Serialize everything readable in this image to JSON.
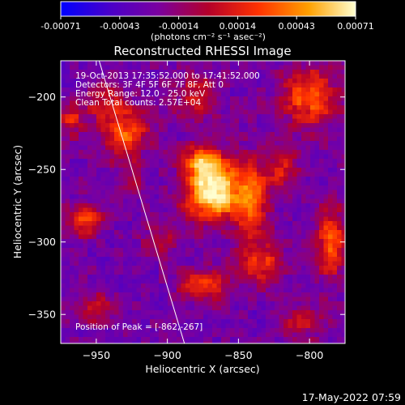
{
  "colorbar": {
    "ticks": [
      "-0.00071",
      "-0.00043",
      "-0.00014",
      "0.00014",
      "0.00043",
      "0.00071"
    ],
    "unit_label": "(photons cm⁻² s⁻¹ asec⁻²)",
    "colors": [
      "#0000ff",
      "#4b00c8",
      "#7a00a0",
      "#b4002a",
      "#ff3200",
      "#ffa000",
      "#ffffd0"
    ]
  },
  "chart_data": {
    "type": "heatmap",
    "title": "Reconstructed RHESSI Image",
    "xlabel": "Heliocentric X (arcsec)",
    "ylabel": "Heliocentric Y (arcsec)",
    "xlim": [
      -975,
      -775
    ],
    "ylim": [
      -370,
      -175
    ],
    "x_ticks": [
      -950,
      -900,
      -850,
      -800
    ],
    "y_ticks": [
      -200,
      -250,
      -300,
      -350
    ],
    "x_tick_labels": [
      "−950",
      "−900",
      "−850",
      "−800"
    ],
    "y_tick_labels": [
      "−200",
      "−250",
      "−300",
      "−350"
    ],
    "annotations": [
      "19-Oct-2013 17:35:52.000 to 17:41:52.000",
      "Detectors: 3F 4F 5F 6F 7F 8F, Att 0",
      "Energy Range: 12.0 - 25.0 keV",
      "Clean    Total counts: 2.57E+04"
    ],
    "peak_label": "Position of Peak = [-862,-267]",
    "peak": [
      -862,
      -267
    ],
    "limb_line": [
      [
        -948,
        -175
      ],
      [
        -888,
        -370
      ]
    ],
    "sources": [
      {
        "x": -867,
        "y": -265,
        "amp": 1.0,
        "sx": 14,
        "sy": 14
      },
      {
        "x": -875,
        "y": -245,
        "amp": 0.55,
        "sx": 10,
        "sy": 8
      },
      {
        "x": -840,
        "y": -270,
        "amp": 0.5,
        "sx": 8,
        "sy": 20
      },
      {
        "x": -835,
        "y": -315,
        "amp": 0.45,
        "sx": 12,
        "sy": 10
      },
      {
        "x": -800,
        "y": -200,
        "amp": 0.55,
        "sx": 14,
        "sy": 15
      },
      {
        "x": -820,
        "y": -250,
        "amp": 0.4,
        "sx": 8,
        "sy": 10
      },
      {
        "x": -785,
        "y": -300,
        "amp": 0.55,
        "sx": 7,
        "sy": 18
      },
      {
        "x": -930,
        "y": -225,
        "amp": 0.55,
        "sx": 12,
        "sy": 12
      },
      {
        "x": -945,
        "y": -205,
        "amp": 0.35,
        "sx": 10,
        "sy": 9
      },
      {
        "x": -958,
        "y": -285,
        "amp": 0.5,
        "sx": 8,
        "sy": 8
      },
      {
        "x": -968,
        "y": -215,
        "amp": 0.4,
        "sx": 6,
        "sy": 8
      },
      {
        "x": -875,
        "y": -330,
        "amp": 0.45,
        "sx": 12,
        "sy": 8
      },
      {
        "x": -905,
        "y": -300,
        "amp": 0.3,
        "sx": 8,
        "sy": 8
      },
      {
        "x": -880,
        "y": -200,
        "amp": 0.4,
        "sx": 10,
        "sy": 10
      },
      {
        "x": -805,
        "y": -355,
        "amp": 0.35,
        "sx": 10,
        "sy": 8
      },
      {
        "x": -950,
        "y": -345,
        "amp": 0.3,
        "sx": 10,
        "sy": 8
      },
      {
        "x": -925,
        "y": -260,
        "amp": 0.3,
        "sx": 6,
        "sy": 8
      }
    ]
  },
  "footer": {
    "date": "17-May-2022 07:59"
  }
}
